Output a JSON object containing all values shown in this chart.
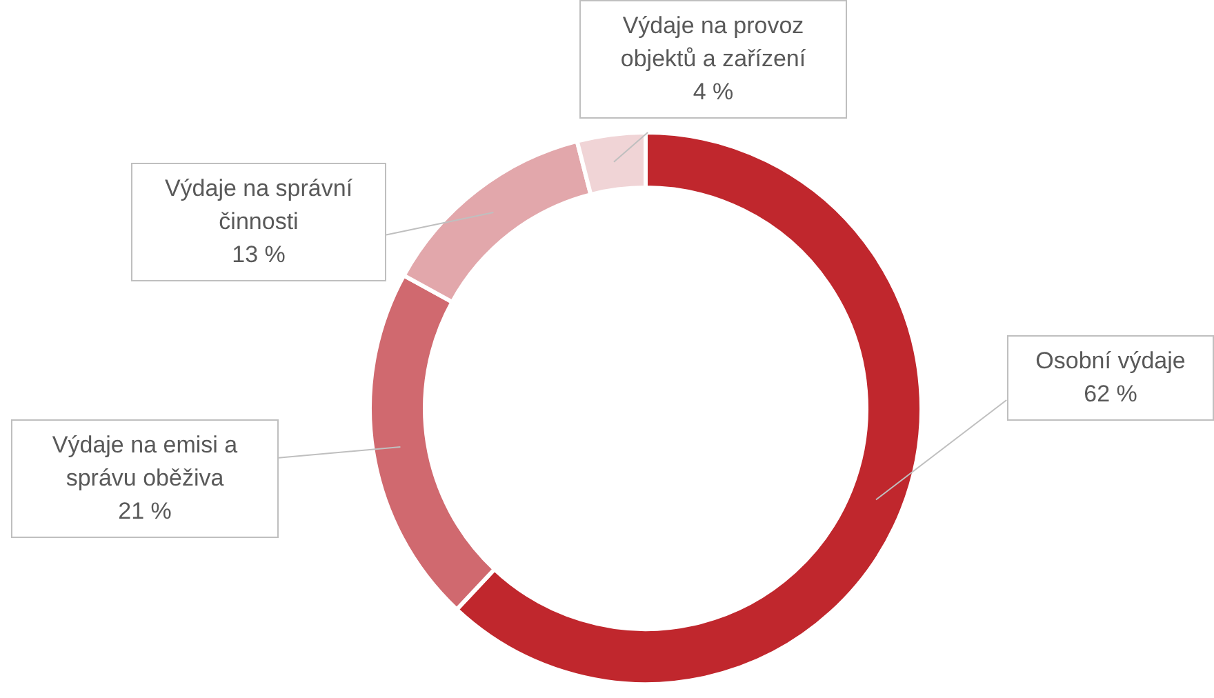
{
  "chart_data": {
    "type": "donut",
    "categories": [
      "Osobní výdaje",
      "Výdaje na emisi a správu oběživa",
      "Výdaje na správní činnosti",
      "Výdaje na provoz objektů a zařízení"
    ],
    "values": [
      62,
      21,
      13,
      4
    ],
    "value_labels": [
      "62 %",
      "21 %",
      "13 %",
      "4 %"
    ],
    "colors": [
      "#c0272d",
      "#d0696f",
      "#e2a7ab",
      "#f0d4d6"
    ],
    "legend": false
  }
}
